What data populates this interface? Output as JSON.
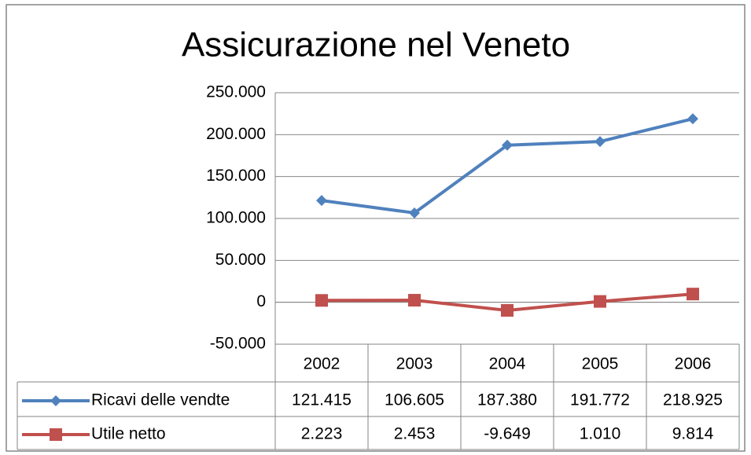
{
  "chart_data": {
    "type": "line",
    "title": "Assicurazione nel Veneto",
    "categories": [
      "2002",
      "2003",
      "2004",
      "2005",
      "2006"
    ],
    "series": [
      {
        "name": "Ricavi delle vendte",
        "color": "#4f81bd",
        "marker": "diamond",
        "values": [
          121415,
          106605,
          187380,
          191772,
          218925
        ],
        "value_labels": [
          "121.415",
          "106.605",
          "187.380",
          "191.772",
          "218.925"
        ]
      },
      {
        "name": "Utile netto",
        "color": "#c0504d",
        "marker": "square",
        "values": [
          2223,
          2453,
          -9649,
          1010,
          9814
        ],
        "value_labels": [
          "2.223",
          "2.453",
          "-9.649",
          "1.010",
          "9.814"
        ]
      }
    ],
    "ylim": [
      -50000,
      250000
    ],
    "yticks": [
      {
        "value": -50000,
        "label": "-50.000"
      },
      0,
      {
        "value": 50000,
        "label": "50.000"
      },
      {
        "value": 100000,
        "label": "100.000"
      },
      {
        "value": 150000,
        "label": "150.000"
      },
      {
        "value": 200000,
        "label": "200.000"
      },
      {
        "value": 250000,
        "label": "250.000"
      }
    ],
    "grid": true,
    "data_table": true
  }
}
